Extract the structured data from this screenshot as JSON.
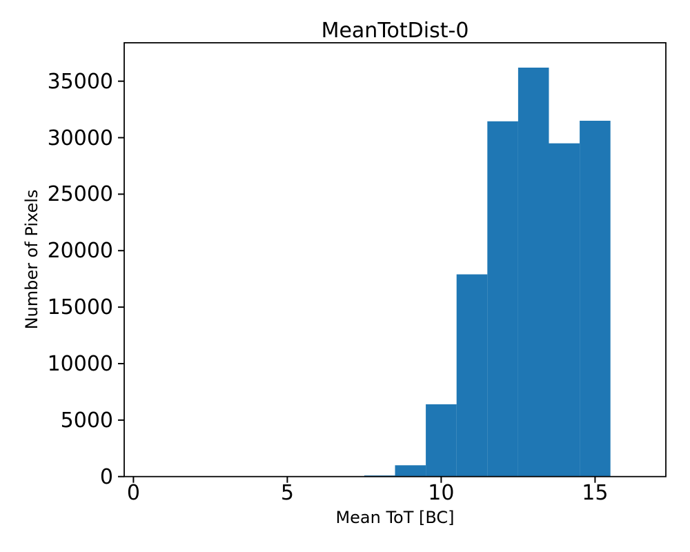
{
  "figure": {
    "title": "MeanTotDist-0",
    "xlabel": "Mean ToT [BC]",
    "ylabel": "Number of Pixels"
  },
  "chart_data": {
    "type": "bar",
    "subtype": "histogram",
    "title": "MeanTotDist-0",
    "xlabel": "Mean ToT [BC]",
    "ylabel": "Number of Pixels",
    "bin_edges": [
      7.5,
      8.5,
      9.5,
      10.5,
      11.5,
      12.5,
      13.5,
      14.5,
      15.5
    ],
    "counts": [
      100,
      1000,
      6400,
      17900,
      31450,
      36200,
      29500,
      31500
    ],
    "x_ticks": [
      0,
      5,
      10,
      15
    ],
    "y_ticks": [
      0,
      5000,
      10000,
      15000,
      20000,
      25000,
      30000,
      35000
    ],
    "xlim": [
      -0.3,
      17.3
    ],
    "ylim": [
      0,
      38400
    ],
    "bar_color": "#1f77b4",
    "axis_color": "#000000",
    "background_color": "#ffffff",
    "grid": false,
    "legend": null
  }
}
